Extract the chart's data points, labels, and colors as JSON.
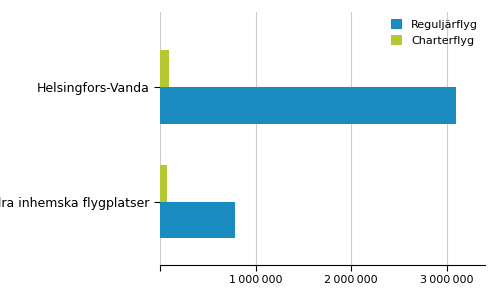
{
  "categories": [
    "Helsingfors-Vanda",
    "Andra inhemska flygplatser"
  ],
  "reguljar": [
    3100000,
    780000
  ],
  "charter": [
    95000,
    75000
  ],
  "reguljar_color": "#1a8bbf",
  "charter_color": "#b5c832",
  "legend_labels": [
    "Reguljärflyg",
    "Charterflyg"
  ],
  "xlim": [
    0,
    3400000
  ],
  "xticks": [
    0,
    1000000,
    2000000,
    3000000
  ],
  "xtick_labels": [
    "",
    "1 000 000",
    "2 000 000",
    "3 000 000"
  ],
  "bar_height": 0.32,
  "background_color": "#ffffff",
  "grid_color": "#cccccc",
  "fontsize": 9
}
